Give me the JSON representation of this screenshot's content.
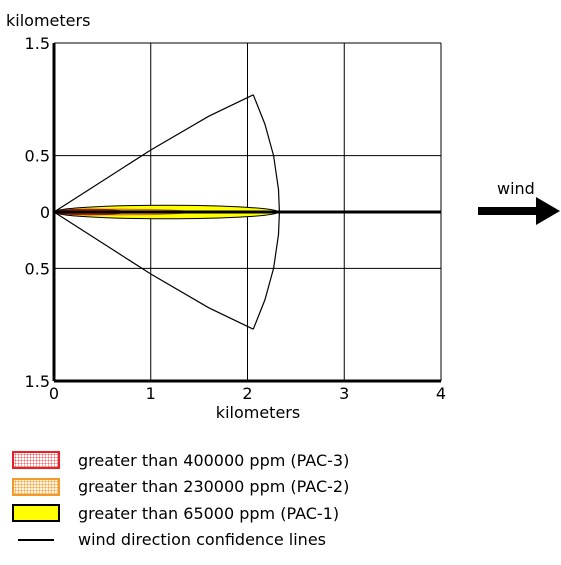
{
  "chart_data": {
    "type": "area",
    "title": "",
    "y_axis_title": "kilometers",
    "xlabel": "kilometers",
    "x_ticks": [
      {
        "value": 0,
        "label": "0"
      },
      {
        "value": 1,
        "label": "1"
      },
      {
        "value": 2,
        "label": "2"
      },
      {
        "value": 3,
        "label": "3"
      },
      {
        "value": 4,
        "label": "4"
      }
    ],
    "y_ticks": [
      {
        "value": 1.5,
        "label": "1.5"
      },
      {
        "value": 0.5,
        "label": "0.5"
      },
      {
        "value": 0,
        "label": "0"
      },
      {
        "value": -0.5,
        "label": "0.5"
      },
      {
        "value": -1.5,
        "label": "1.5"
      }
    ],
    "xlim": [
      0,
      4
    ],
    "ylim": [
      -1.5,
      1.5
    ],
    "grid": true,
    "grid_x": [
      1,
      2,
      3,
      4
    ],
    "grid_y": [
      1.5,
      0.5,
      -0.5
    ],
    "centerline_y": 0,
    "wind_label": "wind",
    "threat_zones": [
      {
        "name": "greater than 65000 ppm (PAC-1)",
        "color": "#ffff00",
        "length_km": 2.32,
        "half_width_km": 0.06
      },
      {
        "name": "greater than 230000 ppm (PAC-2)",
        "color": "#f4a340",
        "length_km": 1.4,
        "half_width_km": 0.025
      },
      {
        "name": "greater than 400000 ppm (PAC-3)",
        "color": "#d82a1e",
        "length_km": 0.72,
        "half_width_km": 0.025
      }
    ],
    "confidence_lines": {
      "name": "wind direction confidence lines",
      "upper_path": [
        [
          0,
          0
        ],
        [
          0.4,
          0.22
        ],
        [
          1,
          0.55
        ],
        [
          1.6,
          0.85
        ],
        [
          2.06,
          1.04
        ]
      ],
      "lower_path": [
        [
          0,
          0
        ],
        [
          0.4,
          -0.22
        ],
        [
          1,
          -0.55
        ],
        [
          1.6,
          -0.85
        ],
        [
          2.06,
          -1.04
        ]
      ],
      "arc_path": [
        [
          2.06,
          1.04
        ],
        [
          2.18,
          0.78
        ],
        [
          2.27,
          0.5
        ],
        [
          2.32,
          0.2
        ],
        [
          2.33,
          0
        ],
        [
          2.32,
          -0.2
        ],
        [
          2.27,
          -0.5
        ],
        [
          2.18,
          -0.78
        ],
        [
          2.06,
          -1.04
        ]
      ]
    }
  },
  "legend": {
    "items": [
      {
        "label": "greater than 400000 ppm (PAC-3)"
      },
      {
        "label": "greater than 230000 ppm (PAC-2)"
      },
      {
        "label": "greater than 65000 ppm (PAC-1)"
      },
      {
        "label": "wind direction confidence lines"
      }
    ]
  }
}
